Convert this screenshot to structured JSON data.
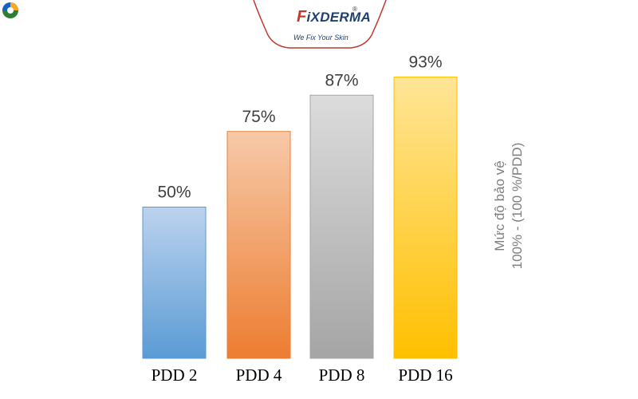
{
  "logo": {
    "brand_first": "F",
    "brand_rest": "iXDERMA",
    "registered": "®",
    "tagline": "We Fix Your Skin"
  },
  "chart_data": {
    "type": "bar",
    "categories": [
      "PDD 2",
      "PDD 4",
      "PDD 8",
      "PDD 16"
    ],
    "values": [
      50,
      75,
      87,
      93
    ],
    "value_labels": [
      "50%",
      "75%",
      "87%",
      "93%"
    ],
    "ylabel_lines": [
      "Mức độ bảo vệ",
      "100% - (100 %/PDD)"
    ],
    "ylim": [
      0,
      100
    ],
    "grid": false,
    "colors": [
      {
        "top": "#bcd3ee",
        "bottom": "#5a9bd5",
        "border": "#5a9bd5"
      },
      {
        "top": "#f7c9a8",
        "bottom": "#ed7d31",
        "border": "#ed7d31"
      },
      {
        "top": "#dcdcdc",
        "bottom": "#a5a5a5",
        "border": "#a5a5a5"
      },
      {
        "top": "#ffe597",
        "bottom": "#ffc000",
        "border": "#ffc000"
      }
    ]
  }
}
